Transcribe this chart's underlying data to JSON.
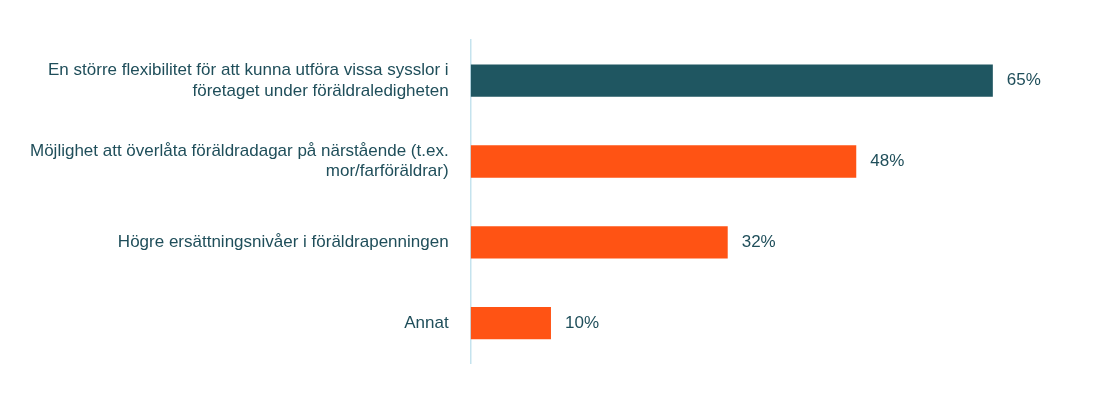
{
  "chart_data": {
    "type": "bar",
    "orientation": "horizontal",
    "categories": [
      "En större flexibilitet för att kunna utföra vissa sysslor i företaget under föräldraledigheten",
      "Möjlighet att överlåta föräldradagar på närstående (t.ex. mor/farföräldrar)",
      "Högre ersättningsnivåer i föräldrapenningen",
      "Annat"
    ],
    "values": [
      65,
      48,
      32,
      10
    ],
    "colors": [
      "#1f5661",
      "#ff5314",
      "#ff5314",
      "#ff5314"
    ],
    "value_labels": [
      "65%",
      "48%",
      "32%",
      "10%"
    ],
    "legend": false
  }
}
